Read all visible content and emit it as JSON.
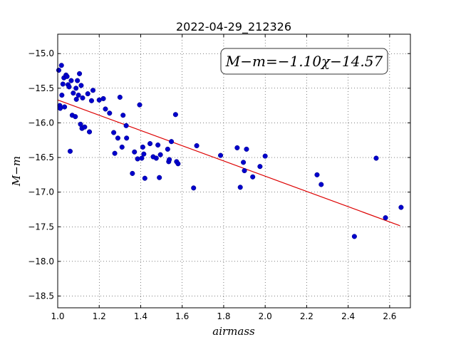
{
  "chart_data": {
    "type": "scatter",
    "title": "2022-04-29_212326",
    "xlabel": "airmass",
    "ylabel": "M−m",
    "xlim": [
      1.0,
      2.7
    ],
    "ylim": [
      -18.67,
      -14.72
    ],
    "y_inverted": true,
    "grid": true,
    "x_ticks": [
      1.0,
      1.2,
      1.4,
      1.6,
      1.8,
      2.0,
      2.2,
      2.4,
      2.6
    ],
    "x_tick_labels": [
      "1.0",
      "1.2",
      "1.4",
      "1.6",
      "1.8",
      "2.0",
      "2.2",
      "2.4",
      "2.6"
    ],
    "y_ticks": [
      -15.0,
      -15.5,
      -16.0,
      -16.5,
      -17.0,
      -17.5,
      -18.0,
      -18.5
    ],
    "y_tick_labels": [
      "−15.0",
      "−15.5",
      "−16.0",
      "−16.5",
      "−17.0",
      "−17.5",
      "−18.0",
      "−18.5"
    ],
    "annotation": "M−m=−1.10χ−14.57",
    "annotation_position": "top-right",
    "series": [
      {
        "kind": "points",
        "color": "#0000cc",
        "points": [
          [
            1.005,
            -15.24
          ],
          [
            1.01,
            -15.75
          ],
          [
            1.012,
            -15.79
          ],
          [
            1.018,
            -15.17
          ],
          [
            1.02,
            -15.6
          ],
          [
            1.025,
            -15.44
          ],
          [
            1.03,
            -15.35
          ],
          [
            1.033,
            -15.77
          ],
          [
            1.04,
            -15.31
          ],
          [
            1.045,
            -15.33
          ],
          [
            1.05,
            -15.45
          ],
          [
            1.055,
            -15.48
          ],
          [
            1.06,
            -16.41
          ],
          [
            1.065,
            -15.39
          ],
          [
            1.07,
            -15.89
          ],
          [
            1.075,
            -15.57
          ],
          [
            1.085,
            -15.91
          ],
          [
            1.088,
            -15.5
          ],
          [
            1.09,
            -15.66
          ],
          [
            1.095,
            -15.39
          ],
          [
            1.1,
            -15.6
          ],
          [
            1.105,
            -15.29
          ],
          [
            1.11,
            -16.02
          ],
          [
            1.113,
            -15.46
          ],
          [
            1.117,
            -16.08
          ],
          [
            1.12,
            -15.64
          ],
          [
            1.13,
            -16.06
          ],
          [
            1.145,
            -15.58
          ],
          [
            1.153,
            -16.13
          ],
          [
            1.163,
            -15.68
          ],
          [
            1.17,
            -15.53
          ],
          [
            1.2,
            -15.67
          ],
          [
            1.22,
            -15.65
          ],
          [
            1.23,
            -15.8
          ],
          [
            1.25,
            -15.86
          ],
          [
            1.27,
            -16.14
          ],
          [
            1.275,
            -16.44
          ],
          [
            1.29,
            -16.22
          ],
          [
            1.3,
            -15.63
          ],
          [
            1.31,
            -16.35
          ],
          [
            1.315,
            -15.89
          ],
          [
            1.33,
            -16.04
          ],
          [
            1.332,
            -16.22
          ],
          [
            1.36,
            -16.73
          ],
          [
            1.37,
            -16.42
          ],
          [
            1.385,
            -16.52
          ],
          [
            1.395,
            -15.74
          ],
          [
            1.405,
            -16.51
          ],
          [
            1.41,
            -16.35
          ],
          [
            1.415,
            -16.45
          ],
          [
            1.42,
            -16.8
          ],
          [
            1.445,
            -16.3
          ],
          [
            1.46,
            -16.49
          ],
          [
            1.475,
            -16.51
          ],
          [
            1.483,
            -16.32
          ],
          [
            1.49,
            -16.79
          ],
          [
            1.495,
            -16.46
          ],
          [
            1.53,
            -16.38
          ],
          [
            1.535,
            -16.56
          ],
          [
            1.538,
            -16.53
          ],
          [
            1.548,
            -16.27
          ],
          [
            1.568,
            -15.88
          ],
          [
            1.573,
            -16.56
          ],
          [
            1.58,
            -16.59
          ],
          [
            1.655,
            -16.94
          ],
          [
            1.67,
            -16.33
          ],
          [
            1.785,
            -16.47
          ],
          [
            1.865,
            -16.36
          ],
          [
            1.88,
            -16.93
          ],
          [
            1.895,
            -16.57
          ],
          [
            1.9,
            -16.69
          ],
          [
            1.91,
            -16.38
          ],
          [
            1.94,
            -16.78
          ],
          [
            1.975,
            -16.63
          ],
          [
            2.0,
            -16.48
          ],
          [
            2.25,
            -16.75
          ],
          [
            2.27,
            -16.89
          ],
          [
            2.43,
            -17.64
          ],
          [
            2.535,
            -16.51
          ],
          [
            2.58,
            -17.37
          ],
          [
            2.655,
            -17.22
          ]
        ]
      },
      {
        "kind": "fit_line",
        "color": "#dd0000",
        "points": [
          [
            1.0,
            -15.67
          ],
          [
            2.65,
            -17.485
          ]
        ]
      }
    ]
  }
}
